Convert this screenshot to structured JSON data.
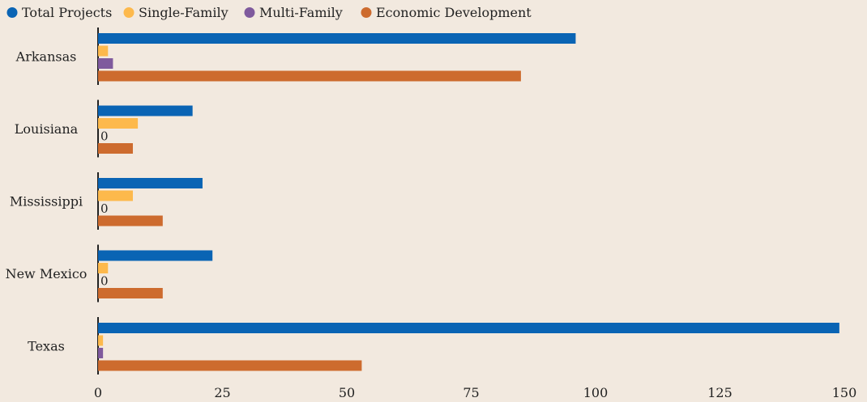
{
  "chart_data": {
    "type": "bar",
    "orientation": "horizontal",
    "categories": [
      "Arkansas",
      "Louisiana",
      "Mississippi",
      "New Mexico",
      "Texas"
    ],
    "series": [
      {
        "name": "Total Projects",
        "color": "#0a64b4",
        "values": [
          96,
          19,
          21,
          23,
          149
        ]
      },
      {
        "name": "Single-Family",
        "color": "#fdb94c",
        "values": [
          2,
          8,
          7,
          2,
          1
        ]
      },
      {
        "name": "Multi-Family",
        "color": "#7f5a9d",
        "values": [
          3,
          0,
          0,
          0,
          1
        ]
      },
      {
        "name": "Economic Development",
        "color": "#cd6b2e",
        "values": [
          85,
          7,
          13,
          13,
          53
        ]
      }
    ],
    "xlim": [
      0,
      150
    ],
    "xticks": [
      0,
      25,
      50,
      75,
      100,
      125,
      150
    ],
    "legend_position": "top-left",
    "grid": false
  }
}
